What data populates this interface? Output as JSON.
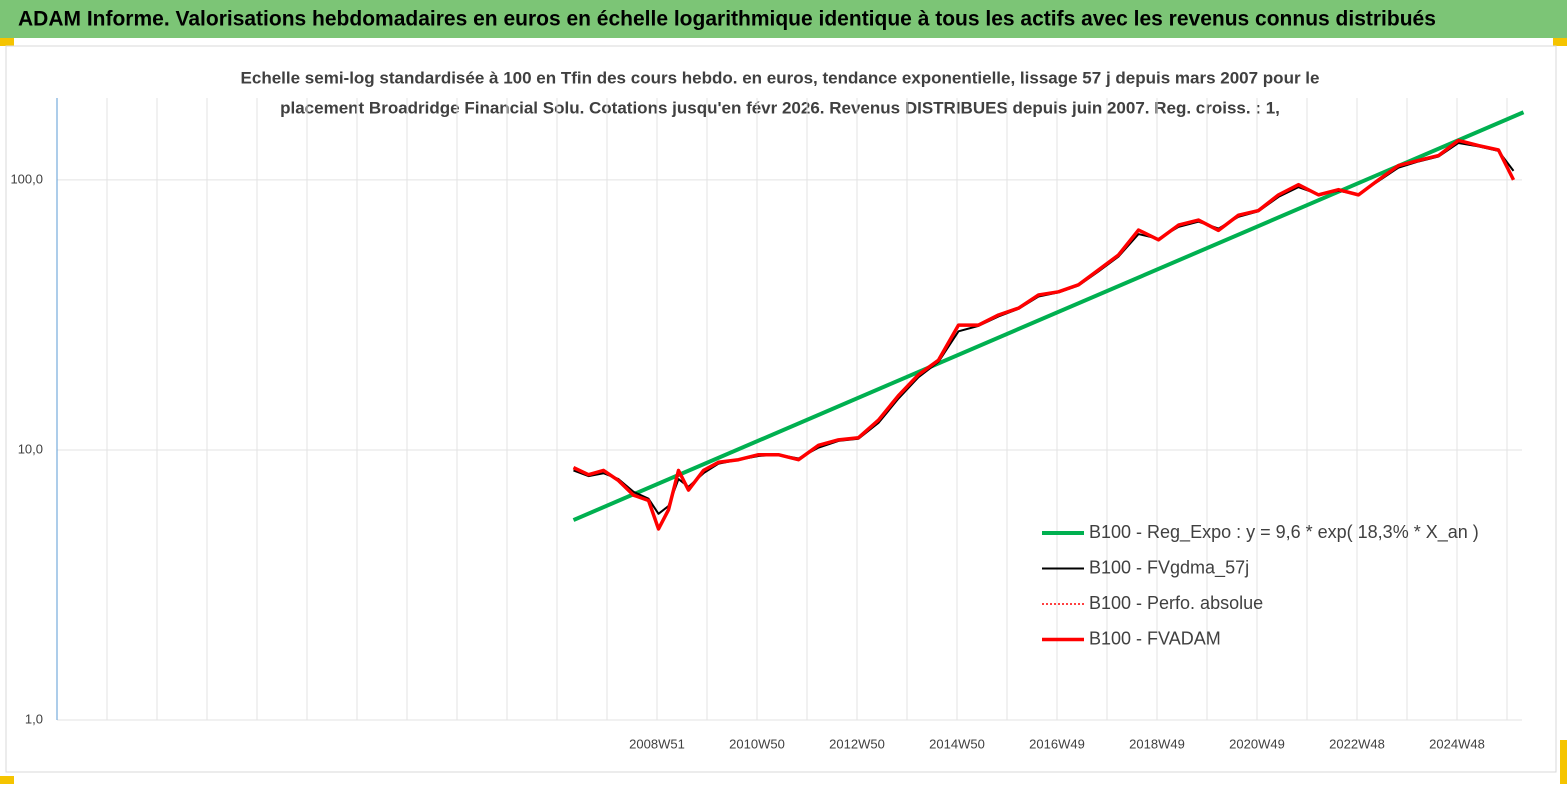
{
  "header": {
    "title": "ADAM Informe. Valorisations hebdomadaires en euros en échelle logarithmique identique à tous les actifs avec les revenus connus distribués"
  },
  "chart_data": {
    "type": "line",
    "title": [
      "Echelle semi-log standardisée à 100 en Tfin des cours hebdo. en euros, tendance exponentielle, lissage 57 j depuis mars 2007 pour le",
      "placement Broadridge Financial Solu. Cotations jusqu'en févr 2026. Revenus DISTRIBUES depuis juin 2007. Reg. croiss. : 1,"
    ],
    "log_y": true,
    "grid": true,
    "legend": "bottom-right",
    "xlim": [
      1996.97,
      2026.27
    ],
    "ylim": [
      1,
      201
    ],
    "xticks": [
      {
        "value": 2008.97,
        "label": "2008W51"
      },
      {
        "value": 2010.97,
        "label": "2010W50"
      },
      {
        "value": 2012.97,
        "label": "2012W50"
      },
      {
        "value": 2014.97,
        "label": "2014W50"
      },
      {
        "value": 2016.97,
        "label": "2016W49"
      },
      {
        "value": 2018.97,
        "label": "2018W49"
      },
      {
        "value": 2020.97,
        "label": "2020W49"
      },
      {
        "value": 2022.97,
        "label": "2022W48"
      },
      {
        "value": 2024.97,
        "label": "2024W48"
      }
    ],
    "yticks": [
      {
        "value": 1,
        "label": "1,0"
      },
      {
        "value": 10,
        "label": "10,0"
      },
      {
        "value": 100,
        "label": "100,0"
      }
    ],
    "series": [
      {
        "name": "B100 - Reg_Expo : y = 9,6 * exp( 18,3% *  X_an )",
        "color": "#00b050",
        "width": 4,
        "dash": "solid",
        "x": [
          2007.3,
          2026.3
        ],
        "values": [
          5.5,
          178
        ]
      },
      {
        "name": "B100 - FVgdma_57j",
        "color": "#000000",
        "width": 2,
        "dash": "solid",
        "x": [
          2007.3,
          2007.6,
          2007.9,
          2008.2,
          2008.5,
          2008.8,
          2009.0,
          2009.2,
          2009.4,
          2009.6,
          2009.9,
          2010.2,
          2010.6,
          2011.0,
          2011.4,
          2011.8,
          2012.2,
          2012.6,
          2013.0,
          2013.4,
          2013.8,
          2014.2,
          2014.6,
          2015.0,
          2015.4,
          2015.8,
          2016.2,
          2016.6,
          2017.0,
          2017.4,
          2017.8,
          2018.2,
          2018.6,
          2019.0,
          2019.4,
          2019.8,
          2020.2,
          2020.6,
          2021.0,
          2021.4,
          2021.8,
          2022.2,
          2022.6,
          2023.0,
          2023.4,
          2023.8,
          2024.2,
          2024.6,
          2025.0,
          2025.4,
          2025.8,
          2026.1
        ],
        "values": [
          8.4,
          8.0,
          8.2,
          7.8,
          7.0,
          6.6,
          5.8,
          6.2,
          7.8,
          7.3,
          8.2,
          8.9,
          9.2,
          9.5,
          9.6,
          9.3,
          10.2,
          10.8,
          11.0,
          12.6,
          15.5,
          18.6,
          21.2,
          27.5,
          28.8,
          31.2,
          33.3,
          37.0,
          38.3,
          40.6,
          45.8,
          52.0,
          63.0,
          60.5,
          67.0,
          70.0,
          66.0,
          73.0,
          76.5,
          86.5,
          94.0,
          88.5,
          91.0,
          88.5,
          99.0,
          111,
          117,
          122,
          137,
          133,
          128,
          108
        ]
      },
      {
        "name": "B100 - Perfo. absolue",
        "color": "#ff0000",
        "width": 1.5,
        "dash": "dotted",
        "x": [
          2007.3,
          2007.6,
          2007.9,
          2008.2,
          2008.5,
          2008.8,
          2009.0,
          2009.2,
          2009.4,
          2009.6,
          2009.9,
          2010.2,
          2010.6,
          2011.0,
          2011.4,
          2011.8,
          2012.2,
          2012.6,
          2013.0,
          2013.4,
          2013.8,
          2014.2,
          2014.6,
          2015.0,
          2015.4,
          2015.8,
          2016.2,
          2016.6,
          2017.0,
          2017.4,
          2017.8,
          2018.2,
          2018.6,
          2019.0,
          2019.4,
          2019.8,
          2020.2,
          2020.6,
          2021.0,
          2021.4,
          2021.8,
          2022.2,
          2022.6,
          2023.0,
          2023.4,
          2023.8,
          2024.2,
          2024.6,
          2025.0,
          2025.4,
          2025.8,
          2026.1
        ],
        "values": [
          8.6,
          8.1,
          8.4,
          7.7,
          6.8,
          6.5,
          5.1,
          6.0,
          8.4,
          7.1,
          8.4,
          9.0,
          9.2,
          9.6,
          9.6,
          9.2,
          10.4,
          10.9,
          11.1,
          12.9,
          15.9,
          19.0,
          21.5,
          29.0,
          29.0,
          31.6,
          33.5,
          37.5,
          38.5,
          40.9,
          46.4,
          52.7,
          65.2,
          60,
          68,
          71,
          65,
          74,
          77,
          88,
          96,
          88,
          92,
          88,
          100,
          113,
          118,
          123,
          140,
          134,
          129,
          100
        ]
      },
      {
        "name": "B100 - FVADAM",
        "color": "#ff0000",
        "width": 3.5,
        "dash": "solid",
        "x": [
          2007.3,
          2007.6,
          2007.9,
          2008.2,
          2008.5,
          2008.8,
          2009.0,
          2009.2,
          2009.4,
          2009.6,
          2009.9,
          2010.2,
          2010.6,
          2011.0,
          2011.4,
          2011.8,
          2012.2,
          2012.6,
          2013.0,
          2013.4,
          2013.8,
          2014.2,
          2014.6,
          2015.0,
          2015.4,
          2015.8,
          2016.2,
          2016.6,
          2017.0,
          2017.4,
          2017.8,
          2018.2,
          2018.6,
          2019.0,
          2019.4,
          2019.8,
          2020.2,
          2020.6,
          2021.0,
          2021.4,
          2021.8,
          2022.2,
          2022.6,
          2023.0,
          2023.4,
          2023.8,
          2024.2,
          2024.6,
          2025.0,
          2025.4,
          2025.8,
          2026.1
        ],
        "values": [
          8.6,
          8.1,
          8.4,
          7.7,
          6.8,
          6.5,
          5.1,
          6.0,
          8.4,
          7.1,
          8.4,
          9.0,
          9.2,
          9.6,
          9.6,
          9.2,
          10.4,
          10.9,
          11.1,
          12.9,
          15.9,
          19.0,
          21.5,
          29.0,
          29.0,
          31.6,
          33.5,
          37.5,
          38.5,
          40.9,
          46.4,
          52.7,
          65.2,
          60,
          68,
          71,
          65,
          74,
          77,
          88,
          96,
          88,
          92,
          88,
          100,
          113,
          118,
          123,
          140,
          134,
          129,
          100
        ]
      }
    ]
  }
}
